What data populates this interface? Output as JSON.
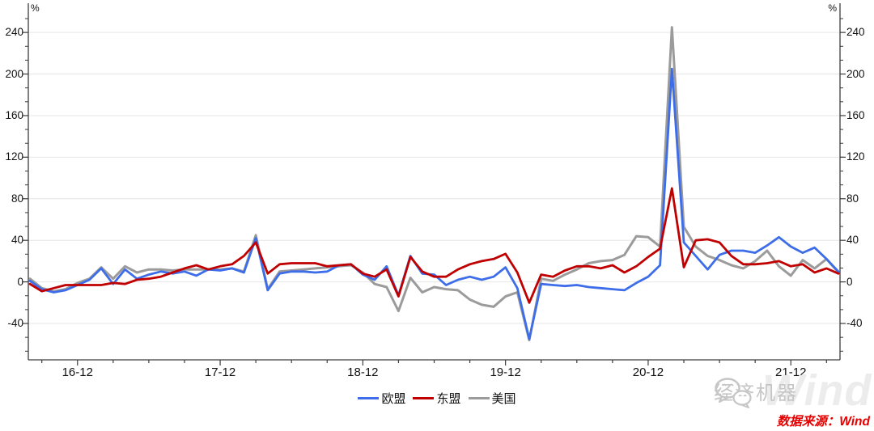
{
  "chart_data": {
    "type": "line",
    "title": "",
    "unit": "%",
    "grid": "horizontal-light",
    "legend_position": "bottom-center",
    "ylim": [
      -75,
      265
    ],
    "y_ticks": [
      -40,
      0,
      40,
      80,
      120,
      160,
      200,
      240
    ],
    "x_tick_labels": [
      "16-12",
      "17-12",
      "18-12",
      "19-12",
      "20-12",
      "21-12"
    ],
    "x_tick_indices": [
      4,
      16,
      28,
      40,
      52,
      64
    ],
    "x": [
      "2016-08",
      "2016-09",
      "2016-10",
      "2016-11",
      "2016-12",
      "2017-01",
      "2017-02",
      "2017-03",
      "2017-04",
      "2017-05",
      "2017-06",
      "2017-07",
      "2017-08",
      "2017-09",
      "2017-10",
      "2017-11",
      "2017-12",
      "2018-01",
      "2018-02",
      "2018-03",
      "2018-04",
      "2018-05",
      "2018-06",
      "2018-07",
      "2018-08",
      "2018-09",
      "2018-10",
      "2018-11",
      "2018-12",
      "2019-01",
      "2019-02",
      "2019-03",
      "2019-04",
      "2019-05",
      "2019-06",
      "2019-07",
      "2019-08",
      "2019-09",
      "2019-10",
      "2019-11",
      "2019-12",
      "2020-01",
      "2020-02",
      "2020-03",
      "2020-04",
      "2020-05",
      "2020-06",
      "2020-07",
      "2020-08",
      "2020-09",
      "2020-10",
      "2020-11",
      "2020-12",
      "2021-01",
      "2021-02",
      "2021-03",
      "2021-04",
      "2021-05",
      "2021-06",
      "2021-07",
      "2021-08",
      "2021-09",
      "2021-10",
      "2021-11",
      "2021-12",
      "2022-01",
      "2022-02",
      "2022-03",
      "2022-04"
    ],
    "series": [
      {
        "name": "欧盟",
        "color": "#3D6DE8",
        "values": [
          1,
          -7,
          -10,
          -8,
          -3,
          2,
          13,
          -2,
          12,
          3,
          7,
          10,
          8,
          10,
          6,
          12,
          11,
          13,
          9,
          42,
          -8,
          8,
          10,
          10,
          9,
          10,
          16,
          17,
          7,
          2,
          15,
          -13,
          25,
          8,
          7,
          -3,
          2,
          5,
          2,
          5,
          14,
          -6,
          -55,
          -2,
          -3,
          -4,
          -3,
          -5,
          -6,
          -7,
          -8,
          -1,
          5,
          16,
          205,
          38,
          25,
          12,
          26,
          30,
          30,
          28,
          35,
          43,
          34,
          28,
          33,
          22,
          10
        ]
      },
      {
        "name": "东盟",
        "color": "#C00000",
        "values": [
          -2,
          -9,
          -6,
          -3,
          -3,
          -3,
          -3,
          -1,
          -2,
          2,
          3,
          5,
          9,
          13,
          16,
          12,
          15,
          17,
          25,
          38,
          8,
          17,
          18,
          18,
          18,
          15,
          16,
          17,
          8,
          5,
          12,
          -14,
          24,
          10,
          5,
          5,
          12,
          17,
          20,
          22,
          27,
          9,
          -20,
          7,
          5,
          11,
          15,
          15,
          13,
          16,
          9,
          15,
          24,
          32,
          90,
          14,
          40,
          41,
          38,
          25,
          17,
          17,
          18,
          20,
          15,
          17,
          9,
          13,
          8
        ]
      },
      {
        "name": "美国",
        "color": "#9B9B9B",
        "values": [
          3,
          -6,
          -9,
          -7,
          -1,
          3,
          14,
          3,
          15,
          9,
          12,
          12,
          11,
          12,
          12,
          12,
          12,
          13,
          10,
          45,
          -7,
          10,
          11,
          12,
          13,
          14,
          15,
          16,
          9,
          -2,
          -5,
          -28,
          4,
          -10,
          -5,
          -7,
          -8,
          -17,
          -22,
          -24,
          -14,
          -10,
          -56,
          3,
          1,
          7,
          12,
          18,
          20,
          21,
          26,
          44,
          43,
          34,
          245,
          53,
          34,
          25,
          21,
          16,
          13,
          20,
          30,
          15,
          6,
          21,
          13,
          22,
          9
        ]
      }
    ]
  },
  "watermark": {
    "brand": "经济机器",
    "wind": "Wind"
  },
  "source": {
    "text": "数据来源：Wind"
  }
}
